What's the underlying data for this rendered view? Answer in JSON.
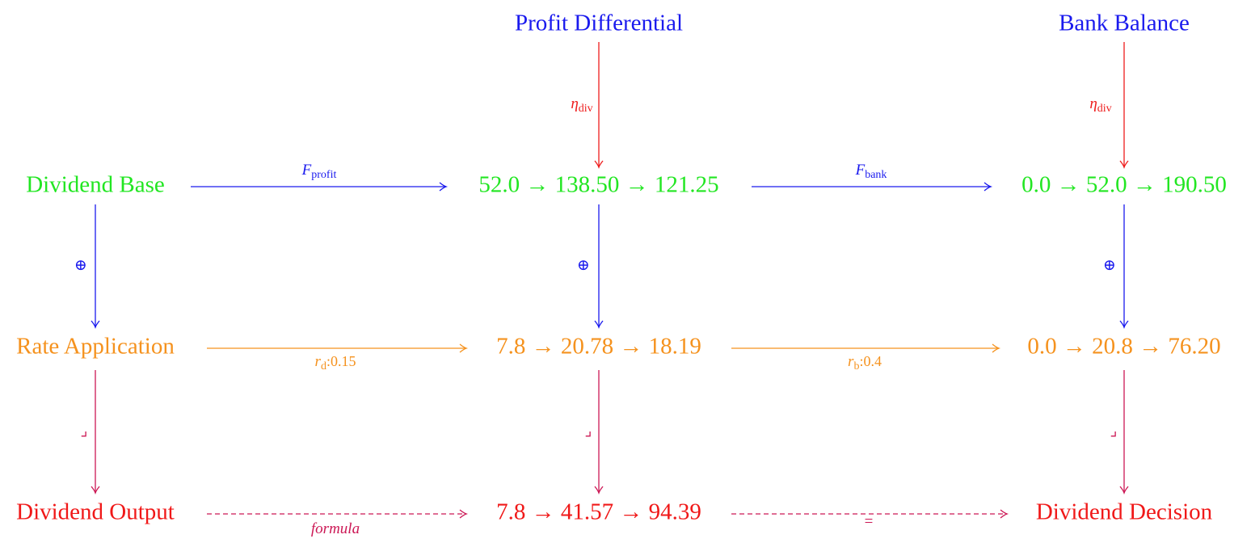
{
  "nodes": [
    {
      "label": "Profit Differential",
      "color": "#1a1aee"
    },
    {
      "label": "Bank Balance",
      "color": "#1a1aee"
    },
    {
      "label": "Dividend Base",
      "color": "#22e622"
    },
    {
      "label": "52.0 → 138.50 → 121.25",
      "color": "#22e622"
    },
    {
      "label": "0.0 → 52.0 → 190.50",
      "color": "#22e622"
    },
    {
      "label": "Rate Application",
      "color": "#f5921e"
    },
    {
      "label": "7.8 → 20.78 → 18.19",
      "color": "#f5921e"
    },
    {
      "label": "0.0 → 20.8 → 76.20",
      "color": "#f5921e"
    },
    {
      "label": "Dividend Output",
      "color": "#f01818"
    },
    {
      "label": "7.8 → 41.57 → 94.39",
      "color": "#f01818"
    },
    {
      "label": "Dividend Decision",
      "color": "#f01818"
    }
  ],
  "edges": [
    {
      "from": 0,
      "to": 3,
      "color": "#ee1c1c",
      "label": {
        "text": "η",
        "sub": "div",
        "italic": true
      }
    },
    {
      "from": 1,
      "to": 4,
      "color": "#ee1c1c",
      "label": {
        "text": "η",
        "sub": "div",
        "italic": true
      }
    },
    {
      "from": 2,
      "to": 3,
      "color": "#1a1aee",
      "label": {
        "text": "F",
        "sub": "profit",
        "italic": true
      }
    },
    {
      "from": 3,
      "to": 4,
      "color": "#1a1aee",
      "label": {
        "text": "F",
        "sub": "bank",
        "italic": true
      }
    },
    {
      "from": 2,
      "to": 5,
      "color": "#1a1aee",
      "label": {
        "text": "⊕"
      }
    },
    {
      "from": 3,
      "to": 6,
      "color": "#1a1aee",
      "label": {
        "text": "⊕"
      }
    },
    {
      "from": 4,
      "to": 7,
      "color": "#1a1aee",
      "label": {
        "text": "⊕"
      }
    },
    {
      "from": 5,
      "to": 6,
      "color": "#f5921e",
      "label": {
        "text": "r",
        "sub": "d",
        "tail": ":0.15",
        "italic": true
      }
    },
    {
      "from": 6,
      "to": 7,
      "color": "#f5921e",
      "label": {
        "text": "r",
        "sub": "b",
        "tail": ":0.4",
        "italic": true
      }
    },
    {
      "from": 5,
      "to": 8,
      "color": "#cc1855",
      "label": {
        "text": "⌟"
      }
    },
    {
      "from": 6,
      "to": 9,
      "color": "#cc1855",
      "label": {
        "text": "⌟"
      }
    },
    {
      "from": 7,
      "to": 10,
      "color": "#cc1855",
      "label": {
        "text": "⌟"
      }
    },
    {
      "from": 8,
      "to": 9,
      "color": "#cc1855",
      "style": "dashed",
      "label": {
        "text": "formula",
        "italic": true
      }
    },
    {
      "from": 9,
      "to": 10,
      "color": "#cc1855",
      "style": "dashed",
      "label": {
        "text": "="
      }
    }
  ]
}
